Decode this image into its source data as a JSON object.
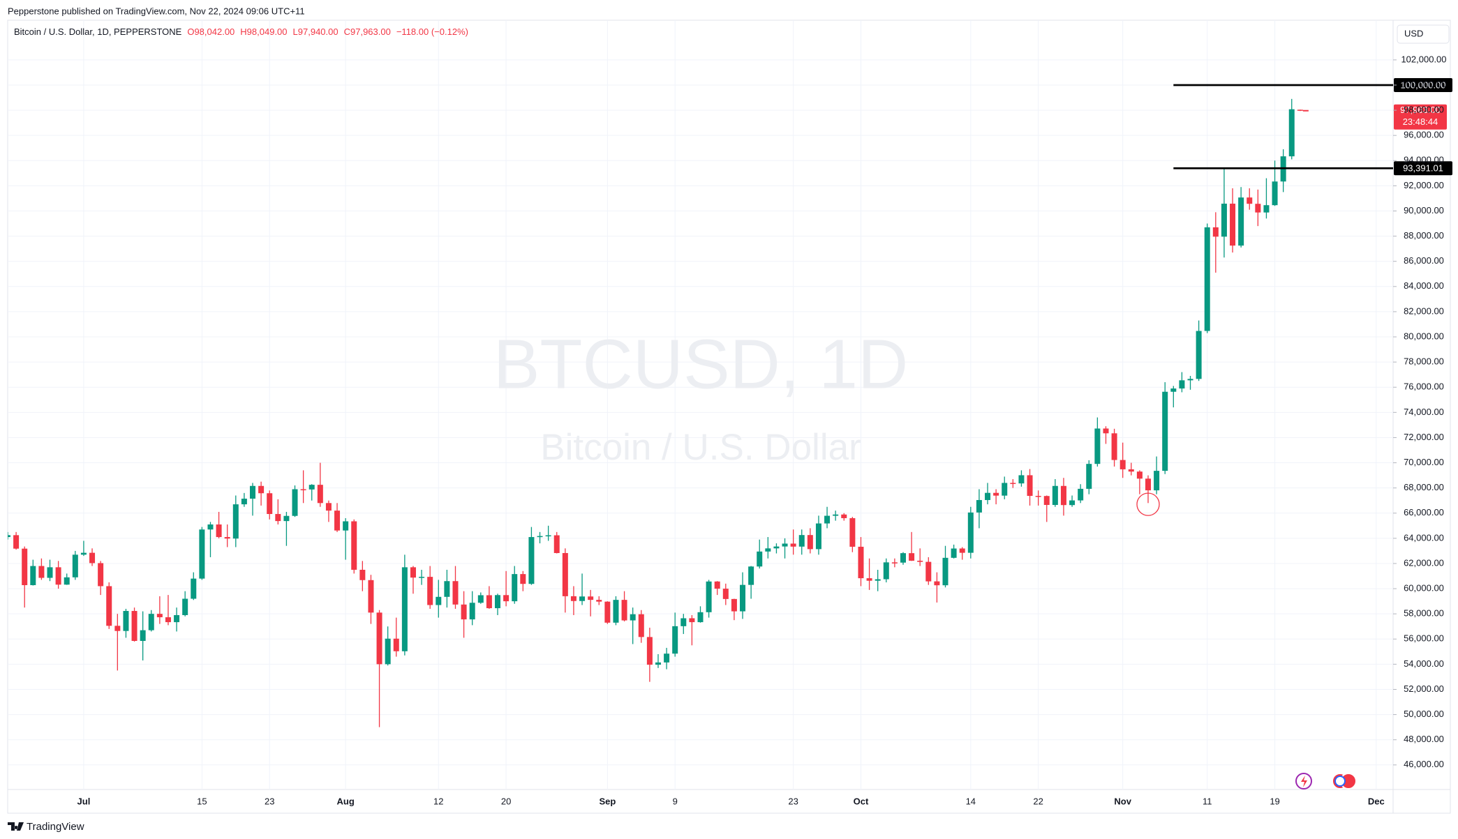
{
  "header": {
    "text": "Pepperstone published on TradingView.com, Nov 22, 2024 09:06 UTC+11"
  },
  "footer": {
    "logo": "TradingView"
  },
  "chart_data": {
    "type": "candlestick",
    "legend": {
      "symbol": "Bitcoin / U.S. Dollar, 1D, PEPPERSTONE",
      "open": "O98,042.00",
      "high": "H98,049.00",
      "low": "L97,940.00",
      "close": "C97,963.00",
      "change": "−118.00 (−0.12%)"
    },
    "watermark": {
      "ticker": "BTCUSD, 1D",
      "name": "Bitcoin / U.S. Dollar"
    },
    "currency": "USD",
    "up_color": "#089981",
    "down_color": "#f23645",
    "x": [
      "Jun 22",
      "Jun 23",
      "Jun 24",
      "Jun 25",
      "Jun 26",
      "Jun 27",
      "Jun 28",
      "Jun 29",
      "Jun 30",
      "Jul 1",
      "Jul 2",
      "Jul 3",
      "Jul 4",
      "Jul 5",
      "Jul 6",
      "Jul 7",
      "Jul 8",
      "Jul 9",
      "Jul 10",
      "Jul 11",
      "Jul 12",
      "Jul 13",
      "Jul 14",
      "Jul 15",
      "Jul 16",
      "Jul 17",
      "Jul 18",
      "Jul 19",
      "Jul 20",
      "Jul 21",
      "Jul 22",
      "Jul 23",
      "Jul 24",
      "Jul 25",
      "Jul 26",
      "Jul 27",
      "Jul 28",
      "Jul 29",
      "Jul 30",
      "Jul 31",
      "Aug 1",
      "Aug 2",
      "Aug 3",
      "Aug 4",
      "Aug 5",
      "Aug 6",
      "Aug 7",
      "Aug 8",
      "Aug 9",
      "Aug 10",
      "Aug 11",
      "Aug 12",
      "Aug 13",
      "Aug 14",
      "Aug 15",
      "Aug 16",
      "Aug 17",
      "Aug 18",
      "Aug 19",
      "Aug 20",
      "Aug 21",
      "Aug 22",
      "Aug 23",
      "Aug 24",
      "Aug 25",
      "Aug 26",
      "Aug 27",
      "Aug 28",
      "Aug 29",
      "Aug 30",
      "Aug 31",
      "Sep 1",
      "Sep 2",
      "Sep 3",
      "Sep 4",
      "Sep 5",
      "Sep 6",
      "Sep 7",
      "Sep 8",
      "Sep 9",
      "Sep 10",
      "Sep 11",
      "Sep 12",
      "Sep 13",
      "Sep 14",
      "Sep 15",
      "Sep 16",
      "Sep 17",
      "Sep 18",
      "Sep 19",
      "Sep 20",
      "Sep 21",
      "Sep 22",
      "Sep 23",
      "Sep 24",
      "Sep 25",
      "Sep 26",
      "Sep 27",
      "Sep 28",
      "Sep 29",
      "Sep 30",
      "Oct 1",
      "Oct 2",
      "Oct 3",
      "Oct 4",
      "Oct 5",
      "Oct 6",
      "Oct 7",
      "Oct 8",
      "Oct 9",
      "Oct 10",
      "Oct 11",
      "Oct 12",
      "Oct 13",
      "Oct 14",
      "Oct 15",
      "Oct 16",
      "Oct 17",
      "Oct 18",
      "Oct 19",
      "Oct 20",
      "Oct 21",
      "Oct 22",
      "Oct 23",
      "Oct 24",
      "Oct 25",
      "Oct 26",
      "Oct 27",
      "Oct 28",
      "Oct 29",
      "Oct 30",
      "Oct 31",
      "Nov 1",
      "Nov 2",
      "Nov 3",
      "Nov 4",
      "Nov 5",
      "Nov 6",
      "Nov 7",
      "Nov 8",
      "Nov 9",
      "Nov 10",
      "Nov 11",
      "Nov 12",
      "Nov 13",
      "Nov 14",
      "Nov 15",
      "Nov 16",
      "Nov 17",
      "Nov 18",
      "Nov 19",
      "Nov 20",
      "Nov 21",
      "Nov 22"
    ],
    "open": [
      64100,
      64250,
      63180,
      60280,
      61800,
      60860,
      61700,
      60320,
      60900,
      62700,
      62850,
      62030,
      60200,
      57050,
      56640,
      58230,
      55850,
      56700,
      58000,
      57730,
      57340,
      57900,
      59200,
      60800,
      64700,
      65100,
      64100,
      63980,
      66700,
      67150,
      68160,
      67580,
      65930,
      65370,
      65780,
      67900,
      67880,
      68250,
      66800,
      66200,
      64620,
      65350,
      61500,
      60680,
      58100,
      54000,
      56030,
      55030,
      61700,
      60880,
      60940,
      58700,
      59350,
      60600,
      58740,
      57560,
      58880,
      59480,
      58450,
      59490,
      59000,
      61160,
      60380,
      64100,
      64180,
      64240,
      62830,
      59400,
      59020,
      59380,
      59110,
      58970,
      57300,
      59110,
      57480,
      57970,
      56160,
      53960,
      54140,
      54840,
      57020,
      57650,
      57340,
      58130,
      60570,
      60000,
      59180,
      58200,
      60300,
      61760,
      62950,
      63200,
      63350,
      63580,
      63340,
      64260,
      63140,
      65180,
      65790,
      65890,
      65600,
      63330,
      60830,
      60630,
      60750,
      62090,
      62070,
      62820,
      62220,
      62130,
      60580,
      60270,
      62450,
      63190,
      62850,
      66050,
      67040,
      67610,
      67390,
      68400,
      68360,
      69010,
      67370,
      67360,
      66650,
      68160,
      66640,
      67010,
      67930,
      69910,
      72720,
      72340,
      70220,
      69480,
      69300,
      68740,
      67810,
      69360,
      75640,
      75900,
      76550,
      76660,
      80470,
      88700,
      87960,
      90580,
      87250,
      91070,
      90570,
      89880,
      90460,
      92340,
      94340,
      98042
    ],
    "high": [
      64500,
      64500,
      63350,
      62300,
      62400,
      62300,
      62200,
      61200,
      63000,
      63800,
      63200,
      62200,
      60500,
      58000,
      58400,
      58500,
      58200,
      58300,
      59400,
      59500,
      58500,
      59800,
      61300,
      64900,
      65300,
      66100,
      65100,
      67400,
      67600,
      68400,
      68500,
      67800,
      67100,
      66100,
      68200,
      69400,
      68300,
      70000,
      67000,
      66800,
      65600,
      65500,
      62200,
      61100,
      58300,
      57000,
      57700,
      62700,
      61800,
      61500,
      61800,
      60700,
      61500,
      61800,
      59800,
      59800,
      59700,
      60200,
      59600,
      61400,
      61800,
      61400,
      64900,
      64500,
      65000,
      64500,
      63200,
      60200,
      61200,
      59900,
      59400,
      59000,
      59400,
      59800,
      58500,
      58300,
      56900,
      54800,
      55300,
      58100,
      58000,
      57900,
      58600,
      60700,
      60600,
      60400,
      59200,
      61300,
      61800,
      63900,
      64100,
      63600,
      64000,
      64700,
      64700,
      64800,
      65800,
      66500,
      66200,
      66000,
      65700,
      64100,
      62400,
      61500,
      62400,
      62400,
      62900,
      64500,
      63200,
      62500,
      61300,
      63400,
      63500,
      63300,
      66500,
      67900,
      68400,
      67900,
      68900,
      68700,
      69400,
      69500,
      67800,
      67400,
      68700,
      68800,
      67400,
      68300,
      70200,
      73600,
      72900,
      72700,
      71600,
      70000,
      69400,
      69000,
      70500,
      76400,
      76100,
      77200,
      76900,
      81300,
      89000,
      89900,
      93400,
      91800,
      91900,
      91800,
      91700,
      92600,
      94000,
      94900,
      98900,
      98049
    ],
    "low": [
      63900,
      63100,
      58500,
      60250,
      60700,
      60600,
      60000,
      60300,
      60700,
      62600,
      61800,
      59500,
      56800,
      53500,
      56100,
      55800,
      54300,
      56600,
      57200,
      57100,
      56600,
      57800,
      59100,
      60700,
      62500,
      64000,
      63300,
      63300,
      66500,
      65800,
      66600,
      65500,
      65100,
      63400,
      65700,
      66800,
      67000,
      66500,
      65300,
      64500,
      62300,
      61200,
      59800,
      57200,
      49000,
      53900,
      54600,
      54700,
      59600,
      60300,
      58400,
      57700,
      58500,
      58400,
      56100,
      57100,
      58800,
      58400,
      57900,
      58600,
      58800,
      59800,
      60300,
      63600,
      63800,
      62800,
      58100,
      57900,
      58700,
      57800,
      58700,
      57200,
      57100,
      57400,
      55600,
      55700,
      52600,
      53700,
      53600,
      54600,
      56400,
      55500,
      57300,
      57700,
      59500,
      58700,
      57500,
      57600,
      59200,
      61600,
      62400,
      62800,
      62400,
      62700,
      62700,
      62800,
      62700,
      64800,
      65400,
      65400,
      62900,
      60200,
      59900,
      59800,
      60500,
      61700,
      61900,
      62200,
      61800,
      60300,
      58900,
      60100,
      62400,
      62300,
      62400,
      64800,
      66700,
      66700,
      67100,
      68000,
      68100,
      66600,
      66600,
      65300,
      66500,
      65800,
      66500,
      66800,
      67500,
      69700,
      71500,
      69700,
      68800,
      69000,
      67500,
      66800,
      67500,
      69100,
      74400,
      75600,
      75800,
      76500,
      80300,
      85100,
      86300,
      86700,
      87100,
      90100,
      88800,
      89400,
      90400,
      91500,
      94100,
      97940
    ],
    "close": [
      64250,
      63180,
      60280,
      61800,
      60860,
      61700,
      60320,
      60900,
      62700,
      62850,
      62030,
      60200,
      57050,
      56640,
      58230,
      55850,
      56700,
      58000,
      57730,
      57340,
      57900,
      59200,
      60800,
      64700,
      65100,
      64100,
      63980,
      66700,
      67150,
      68160,
      67580,
      65930,
      65370,
      65780,
      67900,
      67880,
      68250,
      66800,
      66200,
      64620,
      65350,
      61500,
      60680,
      58100,
      54000,
      56030,
      55030,
      61700,
      60880,
      60940,
      58700,
      59350,
      60600,
      58740,
      57560,
      58880,
      59480,
      58450,
      59490,
      59000,
      61160,
      60380,
      64100,
      64180,
      64240,
      62830,
      59400,
      59020,
      59380,
      59110,
      58970,
      57300,
      59110,
      57480,
      57970,
      56160,
      53960,
      54140,
      54840,
      57020,
      57650,
      57340,
      58130,
      60570,
      60000,
      59180,
      58200,
      60300,
      61760,
      62950,
      63200,
      63350,
      63580,
      63340,
      64260,
      63140,
      65180,
      65790,
      65890,
      65600,
      63330,
      60830,
      60630,
      60750,
      62090,
      62070,
      62820,
      62220,
      62130,
      60580,
      60270,
      62450,
      63190,
      62850,
      66050,
      67040,
      67610,
      67390,
      68400,
      68360,
      69010,
      67370,
      67360,
      66650,
      68160,
      66640,
      67010,
      67930,
      69910,
      72720,
      72340,
      70220,
      69480,
      69300,
      68740,
      67810,
      69360,
      75640,
      75900,
      76550,
      76660,
      80470,
      88700,
      87960,
      90580,
      87250,
      91070,
      90570,
      89880,
      90460,
      92340,
      94340,
      98080,
      97963
    ],
    "xlim": [
      "Jun 22",
      "Dec 3"
    ],
    "xticks": [
      {
        "value": "Jul 1",
        "label": "Jul"
      },
      {
        "value": "Jul 15",
        "label": "15"
      },
      {
        "value": "Jul 23",
        "label": "23"
      },
      {
        "value": "Aug 1",
        "label": "Aug"
      },
      {
        "value": "Aug 12",
        "label": "12"
      },
      {
        "value": "Aug 20",
        "label": "20"
      },
      {
        "value": "Sep 1",
        "label": "Sep"
      },
      {
        "value": "Sep 9",
        "label": "9"
      },
      {
        "value": "Sep 23",
        "label": "23"
      },
      {
        "value": "Oct 1",
        "label": "Oct"
      },
      {
        "value": "Oct 14",
        "label": "14"
      },
      {
        "value": "Oct 22",
        "label": "22"
      },
      {
        "value": "Nov 1",
        "label": "Nov"
      },
      {
        "value": "Nov 11",
        "label": "11"
      },
      {
        "value": "Nov 19",
        "label": "19"
      },
      {
        "value": "Dec 1",
        "label": "Dec"
      }
    ],
    "ylim": [
      44050,
      105150
    ],
    "yticks": [
      {
        "value": 46000,
        "label": "46,000.00"
      },
      {
        "value": 48000,
        "label": "48,000.00"
      },
      {
        "value": 50000,
        "label": "50,000.00"
      },
      {
        "value": 52000,
        "label": "52,000.00"
      },
      {
        "value": 54000,
        "label": "54,000.00"
      },
      {
        "value": 56000,
        "label": "56,000.00"
      },
      {
        "value": 58000,
        "label": "58,000.00"
      },
      {
        "value": 60000,
        "label": "60,000.00"
      },
      {
        "value": 62000,
        "label": "62,000.00"
      },
      {
        "value": 64000,
        "label": "64,000.00"
      },
      {
        "value": 66000,
        "label": "66,000.00"
      },
      {
        "value": 68000,
        "label": "68,000.00"
      },
      {
        "value": 70000,
        "label": "70,000.00"
      },
      {
        "value": 72000,
        "label": "72,000.00"
      },
      {
        "value": 74000,
        "label": "74,000.00"
      },
      {
        "value": 76000,
        "label": "76,000.00"
      },
      {
        "value": 78000,
        "label": "78,000.00"
      },
      {
        "value": 80000,
        "label": "80,000.00"
      },
      {
        "value": 82000,
        "label": "82,000.00"
      },
      {
        "value": 84000,
        "label": "84,000.00"
      },
      {
        "value": 86000,
        "label": "86,000.00"
      },
      {
        "value": 88000,
        "label": "88,000.00"
      },
      {
        "value": 90000,
        "label": "90,000.00"
      },
      {
        "value": 92000,
        "label": "92,000.00"
      },
      {
        "value": 94000,
        "label": "94,000.00"
      },
      {
        "value": 96000,
        "label": "96,000.00"
      },
      {
        "value": 98000,
        "label": "98,000.00"
      },
      {
        "value": 100000,
        "label": "100,000.00"
      },
      {
        "value": 102000,
        "label": "102,000.00"
      }
    ],
    "grid": true,
    "hlines": [
      {
        "value": 100000,
        "label": "100,000.00",
        "from": "Nov 7"
      },
      {
        "value": 93391.01,
        "label": "93,391.01",
        "from": "Nov 7"
      }
    ],
    "last_price": {
      "value": 97963,
      "label": "97,963.00",
      "countdown": "23:48:44"
    },
    "marker": {
      "x": "Nov 4",
      "y": 66700
    }
  }
}
